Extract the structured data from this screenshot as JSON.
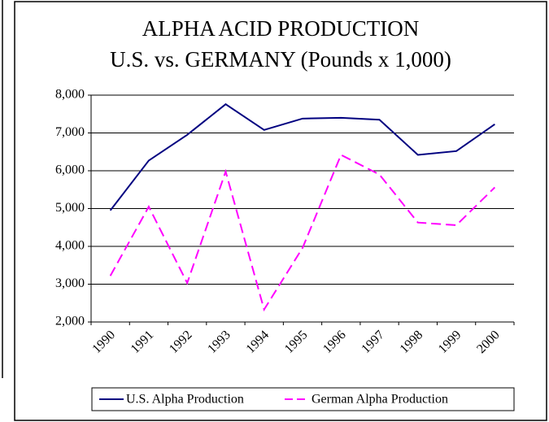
{
  "chart_data": {
    "type": "line",
    "title": "ALPHA ACID PRODUCTION",
    "subtitle": "U.S. vs. GERMANY (Pounds x 1,000)",
    "categories": [
      "1990",
      "1991",
      "1992",
      "1993",
      "1994",
      "1995",
      "1996",
      "1997",
      "1998",
      "1999",
      "2000"
    ],
    "series": [
      {
        "name": "U.S. Alpha Production",
        "color": "#000080",
        "dash": false,
        "values": [
          4950,
          6270,
          6950,
          7760,
          7080,
          7380,
          7400,
          7350,
          6420,
          6520,
          7230
        ]
      },
      {
        "name": "German Alpha Production",
        "color": "#ff00ff",
        "dash": true,
        "values": [
          3220,
          5050,
          3030,
          5980,
          2330,
          3960,
          6420,
          5900,
          4630,
          4560,
          5560
        ]
      }
    ],
    "ylim": [
      2000,
      8000
    ],
    "yticks": [
      {
        "value": 2000,
        "label": "2,000"
      },
      {
        "value": 3000,
        "label": "3,000"
      },
      {
        "value": 4000,
        "label": "4,000"
      },
      {
        "value": 5000,
        "label": "5,000"
      },
      {
        "value": 6000,
        "label": "6,000"
      },
      {
        "value": 7000,
        "label": "7,000"
      },
      {
        "value": 8000,
        "label": "8,000"
      }
    ],
    "grid": true,
    "legend": "bottom"
  }
}
